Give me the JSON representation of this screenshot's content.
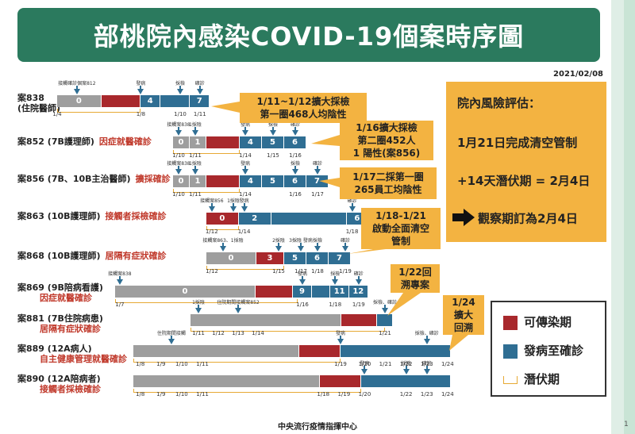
{
  "title": "部桃院內感染COVID-19個案時序圖",
  "date": "2021/02/08",
  "footer": "中央流行疫情指揮中心",
  "page_number": "1",
  "colors": {
    "infectious": "#a8282c",
    "onset_to_confirm": "#2f6e93",
    "other": "#9e9e9e",
    "incubation": "#e7a934",
    "callout": "#f3b341",
    "title_bg": "#2b7a5e"
  },
  "risk": {
    "line1": "院內風險評估：",
    "line2": "1月21日完成清空管制",
    "line3": "+14天潛伏期 = 2月4日",
    "line4": "觀察期訂為2月4日"
  },
  "legend": {
    "infectious": "可傳染期",
    "onset": "發病至確診",
    "incubation": "潛伏期"
  },
  "callouts": [
    {
      "text": "1/11~1/12擴大採檢\n第一圈468人均陰性"
    },
    {
      "text": "1/16擴大採檢\n第二圈452人\n1 陽性(案856)"
    },
    {
      "text": "1/17二採第一圈\n265員工均陰性"
    },
    {
      "text": "1/18-1/21\n啟動全面清空\n管制"
    },
    {
      "text": "1/22回\n溯專案"
    },
    {
      "text": "1/24\n擴大\n回溯"
    }
  ],
  "chart_data": {
    "type": "timeline",
    "cases": [
      {
        "name": "案838",
        "desc": "(住院醫師)",
        "tag": "",
        "segments": [
          {
            "type": "other",
            "start": 0,
            "end": 9,
            "label": "0"
          },
          {
            "type": "infectious",
            "start": 9,
            "end": 17,
            "label": ""
          },
          {
            "type": "onset",
            "start": 17,
            "end": 21,
            "label": "4"
          },
          {
            "type": "onset",
            "start": 21,
            "end": 27,
            "label": ""
          },
          {
            "type": "onset",
            "start": 27,
            "end": 31,
            "label": "7"
          }
        ],
        "dates": [
          "1/4",
          "1/8",
          "1/10",
          "1/11"
        ],
        "date_pos": [
          0,
          17,
          25,
          29
        ],
        "events": [
          {
            "text": "接觸確診個案812",
            "pos": 4
          },
          {
            "text": "發病",
            "pos": 17
          },
          {
            "text": "採檢",
            "pos": 25
          },
          {
            "text": "確診",
            "pos": 29
          }
        ],
        "incubation": [
          0,
          17
        ]
      },
      {
        "name": "案852",
        "desc": "(7B護理師)",
        "tag": "因症就醫確診",
        "segments": [
          {
            "type": "other",
            "start": 0,
            "end": 3,
            "label": "0"
          },
          {
            "type": "other",
            "start": 3,
            "end": 6,
            "label": "1"
          },
          {
            "type": "infectious",
            "start": 6,
            "end": 12,
            "label": ""
          },
          {
            "type": "onset",
            "start": 12,
            "end": 16,
            "label": "4"
          },
          {
            "type": "onset",
            "start": 16,
            "end": 20,
            "label": "5"
          },
          {
            "type": "onset",
            "start": 20,
            "end": 24,
            "label": "6"
          }
        ],
        "dates": [
          "1/10",
          "1/11",
          "1/14",
          "1/15",
          "1/16"
        ],
        "date_pos": [
          1,
          4,
          13,
          18,
          22
        ],
        "events": [
          {
            "text": "接觸案838",
            "pos": 1
          },
          {
            "text": "1採陰",
            "pos": 4
          },
          {
            "text": "發病",
            "pos": 13
          },
          {
            "text": "採檢",
            "pos": 18
          },
          {
            "text": "確診",
            "pos": 22
          }
        ],
        "incubation": [
          0,
          12
        ]
      },
      {
        "name": "案856",
        "desc": "(7B、10B主治醫師)",
        "tag": "擴採確診",
        "segments": [
          {
            "type": "other",
            "start": 0,
            "end": 3,
            "label": "0"
          },
          {
            "type": "other",
            "start": 3,
            "end": 6,
            "label": "1"
          },
          {
            "type": "infectious",
            "start": 6,
            "end": 12,
            "label": ""
          },
          {
            "type": "onset",
            "start": 12,
            "end": 16,
            "label": "4"
          },
          {
            "type": "onset",
            "start": 16,
            "end": 20,
            "label": "5"
          },
          {
            "type": "onset",
            "start": 20,
            "end": 24,
            "label": "6"
          },
          {
            "type": "onset",
            "start": 24,
            "end": 28,
            "label": "7"
          }
        ],
        "dates": [
          "1/10",
          "1/11",
          "1/14",
          "1/16",
          "1/17"
        ],
        "date_pos": [
          1,
          4,
          13,
          22,
          26
        ],
        "events": [
          {
            "text": "接觸案838",
            "pos": 1
          },
          {
            "text": "1採陰",
            "pos": 4
          },
          {
            "text": "發病",
            "pos": 13
          },
          {
            "text": "採檢",
            "pos": 22
          },
          {
            "text": "確診",
            "pos": 26
          }
        ],
        "incubation": [
          0,
          12
        ]
      },
      {
        "name": "案863",
        "desc": "(10B護理師)",
        "tag": "接觸者採檢確診",
        "segments": [
          {
            "type": "infectious",
            "start": 0,
            "end": 6,
            "label": "0"
          },
          {
            "type": "onset",
            "start": 6,
            "end": 12,
            "label": "2"
          },
          {
            "type": "onset",
            "start": 12,
            "end": 26,
            "label": ""
          },
          {
            "type": "onset",
            "start": 26,
            "end": 30,
            "label": "6"
          }
        ],
        "dates": [
          "1/12",
          "1/14",
          "1/18"
        ],
        "date_pos": [
          1,
          7,
          27
        ],
        "events": [
          {
            "text": "接觸案856",
            "pos": 1
          },
          {
            "text": "1採陰",
            "pos": 5
          },
          {
            "text": "發病",
            "pos": 7
          },
          {
            "text": "確診",
            "pos": 27
          }
        ],
        "incubation": [
          0,
          6
        ]
      },
      {
        "name": "案868",
        "desc": "(10B護理師)",
        "tag": "居隔有症狀確診",
        "segments": [
          {
            "type": "other",
            "start": 0,
            "end": 9,
            "label": "0"
          },
          {
            "type": "infectious",
            "start": 9,
            "end": 14,
            "label": "3"
          },
          {
            "type": "onset",
            "start": 14,
            "end": 18,
            "label": "5"
          },
          {
            "type": "onset",
            "start": 18,
            "end": 22,
            "label": "6"
          },
          {
            "type": "onset",
            "start": 22,
            "end": 26,
            "label": "7"
          }
        ],
        "dates": [
          "1/12",
          "1/15",
          "1/17",
          "1/18",
          "1/19"
        ],
        "date_pos": [
          1,
          13,
          17,
          20,
          25
        ],
        "events": [
          {
            "text": "接觸案863、1採陰",
            "pos": 3
          },
          {
            "text": "2採陰",
            "pos": 13
          },
          {
            "text": "3採陰 發病",
            "pos": 17
          },
          {
            "text": "採檢",
            "pos": 20
          },
          {
            "text": "確診",
            "pos": 25
          }
        ],
        "incubation": [
          0,
          14
        ]
      },
      {
        "name": "案869",
        "desc": "(9B陪病看護)",
        "tag": "因症就醫確診",
        "segments": [
          {
            "type": "other",
            "start": 0,
            "end": 30,
            "label": "0"
          },
          {
            "type": "infectious",
            "start": 30,
            "end": 38,
            "label": ""
          },
          {
            "type": "onset",
            "start": 38,
            "end": 42,
            "label": "9"
          },
          {
            "type": "onset",
            "start": 42,
            "end": 46,
            "label": ""
          },
          {
            "type": "onset",
            "start": 46,
            "end": 50,
            "label": "11"
          },
          {
            "type": "onset",
            "start": 50,
            "end": 54,
            "label": "12"
          }
        ],
        "dates": [
          "1/7",
          "1/16",
          "1/18",
          "1/19"
        ],
        "date_pos": [
          1,
          40,
          47,
          52
        ],
        "events": [
          {
            "text": "接觸案838",
            "pos": 1
          },
          {
            "text": "發病",
            "pos": 40
          },
          {
            "text": "採檢",
            "pos": 47
          },
          {
            "text": "確診",
            "pos": 52
          }
        ],
        "incubation": [
          0,
          39
        ]
      },
      {
        "name": "案881",
        "desc": "(7B住院病患)",
        "tag": "居隔有症狀確診",
        "segments": [
          {
            "type": "other",
            "start": 0,
            "end": 38,
            "label": ""
          },
          {
            "type": "infectious",
            "start": 38,
            "end": 47,
            "label": ""
          },
          {
            "type": "onset",
            "start": 47,
            "end": 51,
            "label": ""
          }
        ],
        "dates": [
          "1/11",
          "1/12",
          "1/13",
          "1/14",
          "1/21"
        ],
        "date_pos": [
          2,
          7,
          12,
          17,
          49
        ],
        "events": [
          {
            "text": "1採陰",
            "pos": 2
          },
          {
            "text": "住院期間接觸案852",
            "pos": 12
          },
          {
            "text": "採檢、確診",
            "pos": 49
          }
        ],
        "incubation": [
          0,
          49
        ]
      },
      {
        "name": "案889",
        "desc": "(12A病人)",
        "tag": "自主健康管理就醫確診",
        "segments": [
          {
            "type": "other",
            "start": 0,
            "end": 48,
            "label": ""
          },
          {
            "type": "infectious",
            "start": 48,
            "end": 60,
            "label": ""
          },
          {
            "type": "onset",
            "start": 60,
            "end": 92,
            "label": ""
          }
        ],
        "dates": [
          "1/8",
          "1/9",
          "1/10",
          "1/11",
          "1/19",
          "1/20",
          "1/21",
          "1/22",
          "1/23",
          "1/24"
        ],
        "date_pos": [
          2,
          8,
          14,
          20,
          60,
          67,
          73,
          79,
          85,
          91
        ],
        "events": [
          {
            "text": "住院期間接觸",
            "pos": 11
          },
          {
            "text": "發病",
            "pos": 60
          },
          {
            "text": "採檢、確診",
            "pos": 85
          }
        ],
        "incubation": [
          0,
          60
        ]
      },
      {
        "name": "案890",
        "desc": "(12A陪病者)",
        "tag": "接觸者採檢確診",
        "segments": [
          {
            "type": "other",
            "start": 0,
            "end": 54,
            "label": ""
          },
          {
            "type": "infectious",
            "start": 54,
            "end": 66,
            "label": ""
          },
          {
            "type": "onset",
            "start": 66,
            "end": 92,
            "label": ""
          }
        ],
        "dates": [
          "1/8",
          "1/9",
          "1/10",
          "1/11",
          "1/18",
          "1/19",
          "1/20",
          "1/22",
          "1/23",
          "1/24"
        ],
        "date_pos": [
          2,
          8,
          14,
          20,
          55,
          61,
          67,
          79,
          85,
          91
        ],
        "events": [
          {
            "text": "發病",
            "pos": 67
          },
          {
            "text": "採檢",
            "pos": 79
          },
          {
            "text": "確診",
            "pos": 85
          }
        ],
        "incubation": [
          0,
          66
        ]
      }
    ]
  }
}
